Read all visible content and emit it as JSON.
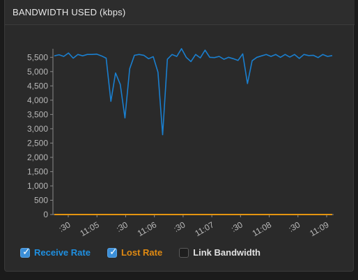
{
  "panel": {
    "title": "BANDWIDTH USED (kbps)"
  },
  "legend": [
    {
      "label": "Receive Rate",
      "checked": true,
      "color": "#1f8fe0"
    },
    {
      "label": "Lost Rate",
      "checked": true,
      "color": "#e08a12"
    },
    {
      "label": "Link Bandwidth",
      "checked": false,
      "color": "#e0e0e0"
    }
  ],
  "colors": {
    "receive": "#1a7fcf",
    "lost": "#e39410",
    "axis": "#8a8a8a",
    "tick_text": "#b8b8b8"
  },
  "chart_data": {
    "type": "line",
    "title": "BANDWIDTH USED (kbps)",
    "ylim": [
      0,
      5750
    ],
    "yticks": [
      0,
      500,
      1000,
      1500,
      2000,
      2500,
      3000,
      3500,
      4000,
      4500,
      5000,
      5500
    ],
    "ytick_labels": [
      "0",
      "500",
      "1,000",
      "1,500",
      "2,000",
      "2,500",
      "3,000",
      "3,500",
      "4,000",
      "4,500",
      "5,000",
      "5,500"
    ],
    "xticks": [
      ":30",
      "11:05",
      ":30",
      "11:06",
      ":30",
      "11:07",
      ":30",
      "11:08",
      ":30",
      "11:09"
    ],
    "grid": false,
    "legend_position": "bottom-left",
    "series": [
      {
        "name": "Receive Rate",
        "values": [
          5550,
          5590,
          5530,
          5650,
          5470,
          5600,
          5550,
          5600,
          5600,
          5610,
          5550,
          5470,
          3960,
          4950,
          4550,
          3380,
          5100,
          5570,
          5600,
          5570,
          5450,
          5520,
          4980,
          2790,
          5430,
          5600,
          5530,
          5800,
          5500,
          5350,
          5600,
          5480,
          5750,
          5500,
          5490,
          5530,
          5430,
          5500,
          5450,
          5390,
          5620,
          4580,
          5380,
          5500,
          5550,
          5600,
          5530,
          5600,
          5500,
          5600,
          5510,
          5600,
          5460,
          5600,
          5560,
          5570,
          5490,
          5600,
          5530,
          5560
        ]
      },
      {
        "name": "Lost Rate",
        "values": [
          0,
          0,
          0,
          0,
          0,
          0,
          0,
          0,
          0,
          0,
          0,
          0,
          0,
          0,
          0,
          0,
          0,
          0,
          0,
          0,
          0,
          0,
          0,
          0,
          0,
          0,
          0,
          0,
          0,
          0,
          0,
          0,
          0,
          0,
          0,
          0,
          0,
          0,
          0,
          0,
          0,
          0,
          0,
          0,
          0,
          0,
          0,
          0,
          0,
          0,
          0,
          0,
          0,
          0,
          0,
          0,
          0,
          0,
          0,
          0
        ]
      }
    ]
  }
}
